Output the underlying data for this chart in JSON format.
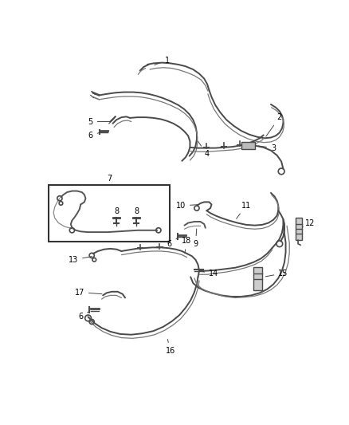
{
  "bg_color": "#ffffff",
  "line_color": "#4a4a4a",
  "label_color": "#000000",
  "fs": 7,
  "lw": 1.4,
  "lw2": 0.9,
  "box_color": "#333333",
  "part_color": "#666666"
}
